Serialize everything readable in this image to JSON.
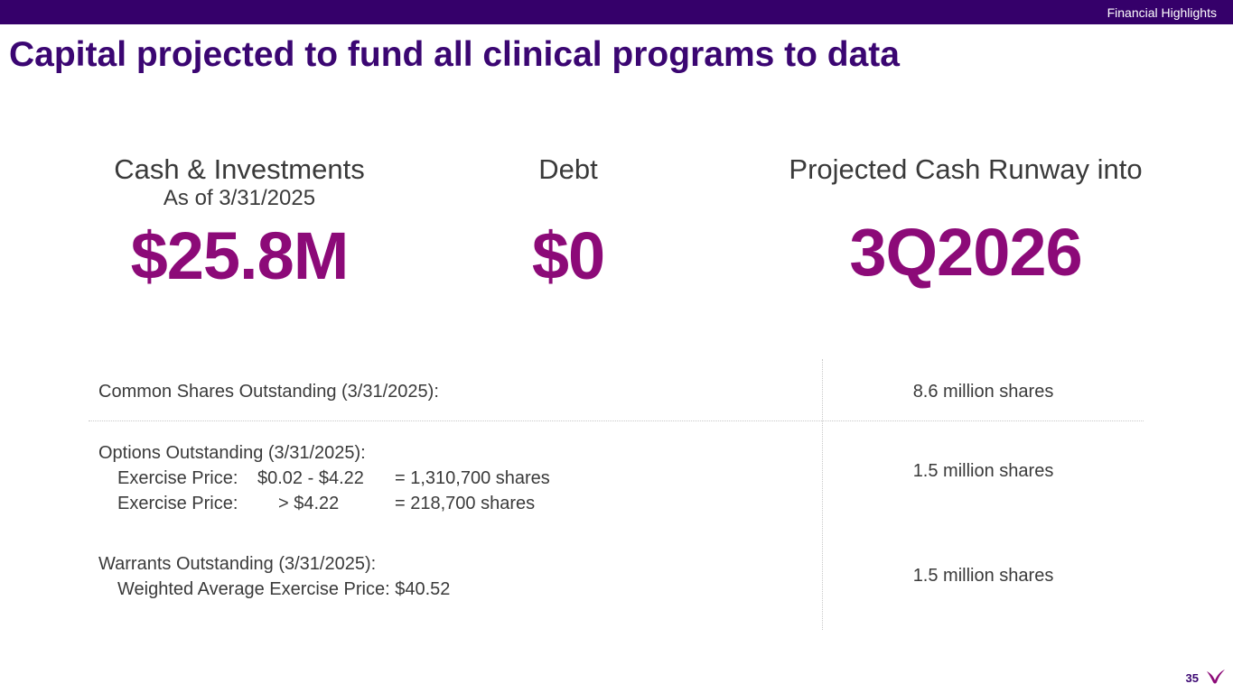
{
  "header": {
    "section_label": "Financial Highlights"
  },
  "title": "Capital projected to fund all clinical programs to data",
  "metrics": {
    "cash": {
      "label": "Cash & Investments",
      "sublabel": "As of 3/31/2025",
      "value": "$25.8M"
    },
    "debt": {
      "label": "Debt",
      "value": "$0"
    },
    "runway": {
      "label": "Projected Cash Runway into",
      "value": "3Q2026"
    }
  },
  "shares_table": {
    "common": {
      "label": "Common Shares Outstanding (3/31/2025):",
      "value": "8.6 million shares"
    },
    "options": {
      "label": "Options Outstanding (3/31/2025):",
      "lines": [
        {
          "name": "Exercise Price:",
          "range": "$0.02 - $4.22",
          "amount": "= 1,310,700  shares"
        },
        {
          "name": "Exercise Price:",
          "range": "> $4.22",
          "amount": "= 218,700  shares"
        }
      ],
      "value": "1.5 million shares"
    },
    "warrants": {
      "label": "Warrants Outstanding (3/31/2025):",
      "detail": "Weighted Average Exercise Price: $40.52",
      "value": "1.5 million shares"
    }
  },
  "footer": {
    "page_number": "35",
    "logo_icon": "bird-logo-icon",
    "accent_color": "#8c0a78",
    "brand_color": "#35006a"
  }
}
